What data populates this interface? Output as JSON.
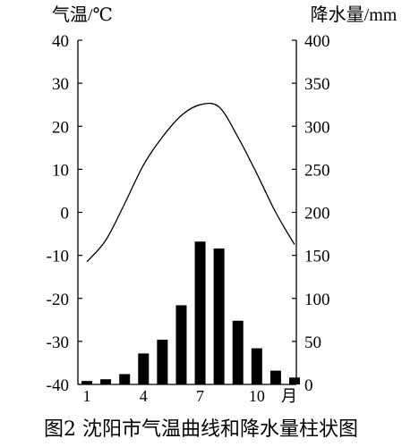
{
  "chart_data": {
    "type": "bar+line",
    "left_axis": {
      "label": "气温/℃",
      "ylim": [
        -40,
        40
      ],
      "ticks": [
        "40",
        "30",
        "20",
        "10",
        "0",
        "-10",
        "-20",
        "-30",
        "-40"
      ]
    },
    "right_axis": {
      "label": "降水量/mm",
      "ylim": [
        0,
        400
      ],
      "ticks": [
        "400",
        "350",
        "300",
        "250",
        "200",
        "150",
        "100",
        "50",
        "0"
      ]
    },
    "x_axis": {
      "unit_label": "月",
      "months": [
        1,
        2,
        3,
        4,
        5,
        6,
        7,
        8,
        9,
        10,
        11,
        12
      ],
      "tick_labels": [
        "1",
        "4",
        "7",
        "10"
      ]
    },
    "series": [
      {
        "type": "bar",
        "axis": "right",
        "values": [
          4,
          6,
          12,
          36,
          52,
          92,
          166,
          158,
          74,
          42,
          16,
          8
        ]
      },
      {
        "type": "line",
        "axis": "left",
        "values": [
          -11.5,
          -6.5,
          2,
          11,
          17.5,
          22.5,
          25,
          24.5,
          17.5,
          9,
          0,
          -7.5
        ]
      }
    ],
    "caption": "图2 沈阳市气温曲线和降水量柱状图"
  }
}
